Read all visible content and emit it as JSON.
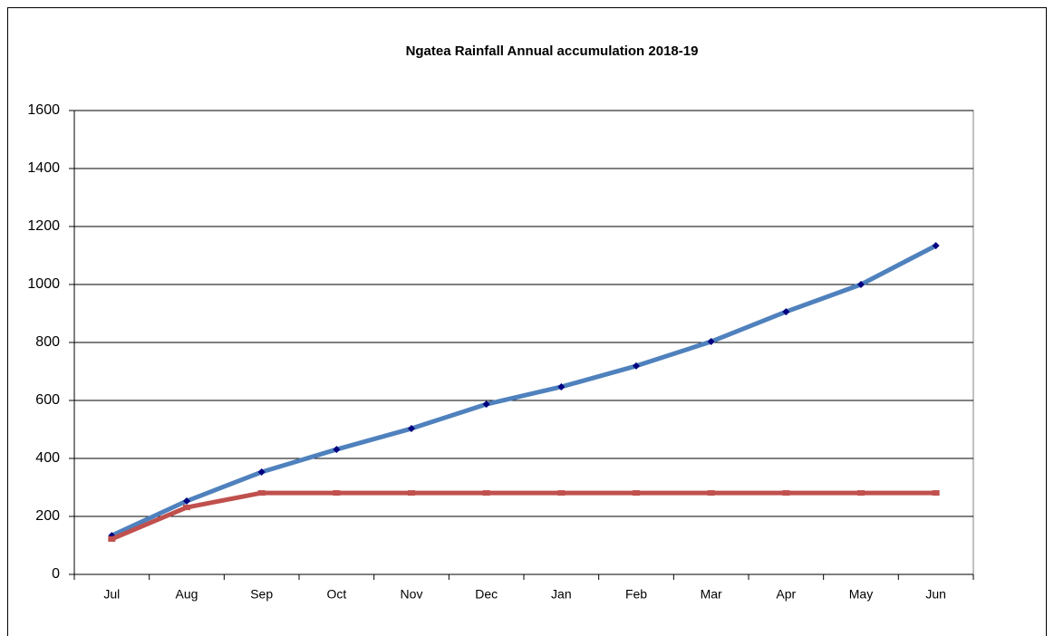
{
  "chart_data": {
    "type": "line",
    "title": "Ngatea Rainfall Annual accumulation 2018-19",
    "categories": [
      "Jul",
      "Aug",
      "Sep",
      "Oct",
      "Nov",
      "Dec",
      "Jan",
      "Feb",
      "Mar",
      "Apr",
      "May",
      "Jun"
    ],
    "series": [
      {
        "color": "#4f81bd",
        "marker_color": "#000080",
        "values": [
          134,
          253,
          353,
          431,
          503,
          587,
          647,
          719,
          803,
          906,
          1000,
          1134
        ]
      },
      {
        "color": "#c0504d",
        "marker_color": "#c0504d",
        "values": [
          122,
          231,
          281,
          281,
          281,
          281,
          281,
          281,
          281,
          281,
          281,
          281
        ]
      }
    ],
    "ylim": [
      0,
      1600
    ],
    "yticks": [
      0,
      200,
      400,
      600,
      800,
      1000,
      1200,
      1400,
      1600
    ],
    "grid": true
  }
}
